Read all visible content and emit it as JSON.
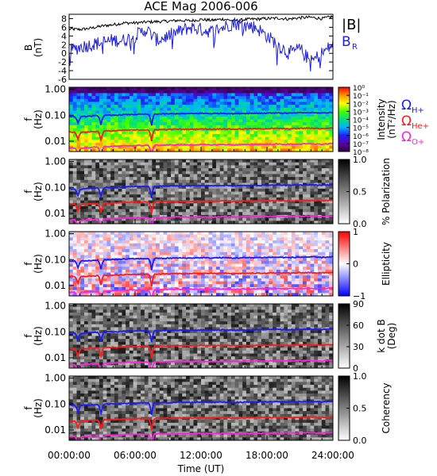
{
  "title": "ACE Mag 2006-006",
  "colors": {
    "bmag": "#000000",
    "br": "#1f1fe0",
    "hplus": "#1a1aff",
    "heplus": "#ff1a1a",
    "oplus": "#ff22dd"
  },
  "xaxis": {
    "label": "Time (UT)",
    "ticks": [
      "00:00:00",
      "06:00:00",
      "12:00:00",
      "18:00:00",
      "24:00:00"
    ],
    "tick_hours": [
      0,
      6,
      12,
      18,
      24
    ]
  },
  "freq_axis": {
    "label_line1": "f",
    "label_line2": "(Hz)",
    "ticks": [
      "1.00",
      "0.10",
      "0.01"
    ]
  },
  "legend": {
    "bmag": "|B|",
    "br": "B",
    "br_sub": "R",
    "omega": "Ω",
    "hplus_sub": "H+",
    "heplus_sub": "He+",
    "oplus_sub": "O+"
  },
  "panels": [
    {
      "id": "intensity",
      "colorbar_title": "Intensity",
      "colorbar_title2": "(nT²/Hz)",
      "colorbar_ticks": [
        "10⁰",
        "10⁻¹",
        "10⁻²",
        "10⁻³",
        "10⁻⁴",
        "10⁻⁵",
        "10⁻⁶",
        "10⁻⁷",
        "10⁻⁸"
      ],
      "colormap": "rainbow"
    },
    {
      "id": "polarization",
      "colorbar_title": "% Polarization",
      "colorbar_ticks": [
        "1.0",
        "0.5",
        "0.0"
      ],
      "colormap": "gray"
    },
    {
      "id": "ellipticity",
      "colorbar_title": "Ellipticity",
      "colorbar_ticks": [
        "1",
        "0",
        "−1"
      ],
      "colormap": "bwr"
    },
    {
      "id": "kdotb",
      "colorbar_title": "k dot B",
      "colorbar_title2": "(Deg)",
      "colorbar_ticks": [
        "90",
        "60",
        "30",
        "0"
      ],
      "colormap": "gray"
    },
    {
      "id": "coherency",
      "colorbar_title": "Coherency",
      "colorbar_ticks": [
        "1.0",
        "0.5",
        "0.0"
      ],
      "colormap": "gray"
    }
  ],
  "chart_data": {
    "type": "line",
    "title": "ACE Mag 2006-006",
    "xlabel": "Time (UT)",
    "xlim": [
      0,
      24
    ],
    "field_panel": {
      "ylabel": "B (nT)",
      "ylim": [
        -6,
        9
      ],
      "yticks": [
        8,
        6,
        4,
        2,
        0,
        -2,
        -4,
        -6
      ],
      "x": [
        0,
        1,
        2,
        3,
        4,
        5,
        6,
        7,
        8,
        9,
        10,
        11,
        12,
        13,
        14,
        15,
        16,
        17,
        18,
        19,
        20,
        21,
        22,
        23,
        24
      ],
      "series": [
        {
          "name": "|B|",
          "values": [
            5.6,
            5.5,
            5.8,
            6.3,
            6.6,
            7.0,
            7.0,
            7.2,
            7.3,
            7.4,
            7.6,
            7.5,
            7.8,
            7.6,
            7.9,
            7.5,
            7.8,
            7.9,
            8.0,
            8.1,
            7.9,
            8.2,
            8.3,
            8.0,
            8.5
          ]
        },
        {
          "name": "B_R",
          "values": [
            0.5,
            1.5,
            2.0,
            2.5,
            3.0,
            3.0,
            4.0,
            5.5,
            3.0,
            4.0,
            5.0,
            6.0,
            5.5,
            5.0,
            6.0,
            7.0,
            6.5,
            6.0,
            4.0,
            2.0,
            0.0,
            1.0,
            -2.0,
            0.0,
            2.0
          ]
        }
      ]
    },
    "frequency_panels": {
      "ylabel": "f (Hz)",
      "ylim": [
        0.004,
        1.2
      ],
      "yscale": "log",
      "x": [
        0,
        1,
        2,
        3,
        4,
        5,
        6,
        7,
        8,
        9,
        10,
        11,
        12,
        13,
        14,
        15,
        16,
        17,
        18,
        19,
        20,
        21,
        22,
        23,
        24
      ],
      "series": [
        {
          "name": "Ω H+",
          "values": [
            0.09,
            0.087,
            0.093,
            0.098,
            0.1,
            0.106,
            0.108,
            0.11,
            0.112,
            0.113,
            0.116,
            0.115,
            0.119,
            0.116,
            0.12,
            0.115,
            0.119,
            0.12,
            0.122,
            0.124,
            0.12,
            0.125,
            0.127,
            0.122,
            0.13
          ]
        },
        {
          "name": "Ω He+",
          "values": [
            0.0225,
            0.0218,
            0.0232,
            0.0245,
            0.025,
            0.0265,
            0.027,
            0.0275,
            0.028,
            0.0283,
            0.029,
            0.0288,
            0.0298,
            0.029,
            0.03,
            0.0288,
            0.0298,
            0.03,
            0.0305,
            0.031,
            0.03,
            0.0313,
            0.0318,
            0.0305,
            0.0325
          ]
        },
        {
          "name": "Ω O+",
          "values": [
            0.0056,
            0.0054,
            0.0058,
            0.0061,
            0.0063,
            0.0066,
            0.0068,
            0.0069,
            0.007,
            0.0071,
            0.0073,
            0.0072,
            0.0074,
            0.0072,
            0.0075,
            0.0072,
            0.0074,
            0.0075,
            0.0076,
            0.0077,
            0.0075,
            0.0078,
            0.0079,
            0.0076,
            0.0081
          ]
        }
      ],
      "events": [
        {
          "hour": 0.8,
          "factor": 0.55
        },
        {
          "hour": 2.9,
          "factor": 0.45
        },
        {
          "hour": 7.5,
          "factor": 0.35
        }
      ]
    }
  }
}
